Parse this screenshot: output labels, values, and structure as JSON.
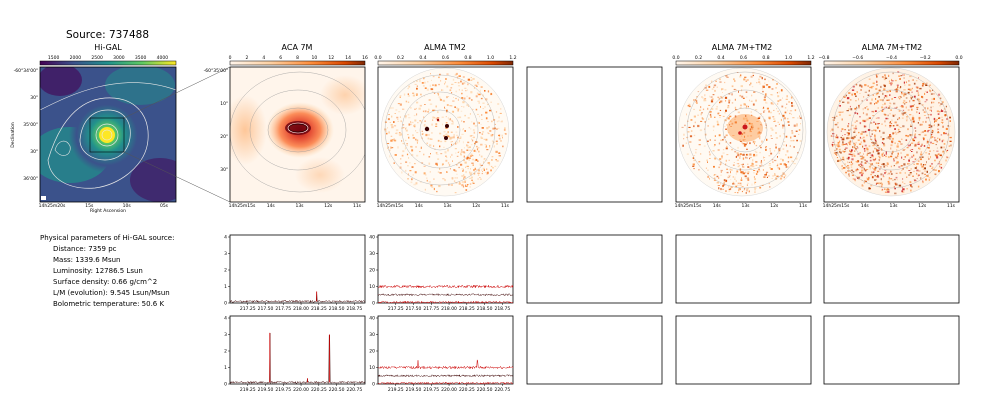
{
  "source_title": "Source: 737488",
  "colors": {
    "higal_cmap": [
      "#440154",
      "#3b528b",
      "#21918c",
      "#5ec962",
      "#fde725"
    ],
    "alma_cmap": [
      "#fff5eb",
      "#fdd0a2",
      "#fd8d3c",
      "#d94801",
      "#7f2704"
    ],
    "spec_dark": "#3b0000",
    "spec_red": "#cc0000"
  },
  "panels": [
    {
      "title": "Hi-GAL",
      "cbar_ticks": [
        "1500",
        "2000",
        "2500",
        "3000",
        "3500",
        "4000"
      ],
      "xticks": [
        "14h25m20s",
        "15s",
        "10s",
        "05s"
      ],
      "yticks": [
        "-60°34'00\"",
        "30\"",
        "35'00\"",
        "30\"",
        "36'00\""
      ],
      "xlabel": "Right Ascension",
      "ylabel": "Declination"
    },
    {
      "title": "ACA 7M",
      "cbar_ticks": [
        "0",
        "2",
        "4",
        "6",
        "8",
        "10",
        "12",
        "14",
        "16"
      ],
      "xticks": [
        "14h25m15s",
        "14s",
        "13s",
        "12s",
        "11s"
      ],
      "yticks": [
        "-60°35'00\"",
        "10\"",
        "20\"",
        "30\""
      ]
    },
    {
      "title": "ALMA TM2",
      "cbar_ticks": [
        "0.0",
        "0.2",
        "0.4",
        "0.6",
        "0.8",
        "1.0",
        "1.2"
      ],
      "xticks": [
        "14h25m15s",
        "14s",
        "13s",
        "12s",
        "11s"
      ]
    },
    {
      "title": "ALMA 7M+TM2",
      "cbar_ticks": [
        "0.0",
        "0.2",
        "0.4",
        "0.6",
        "0.8",
        "1.0",
        "1.2"
      ],
      "xticks": [
        "14h25m15s",
        "14s",
        "13s",
        "12s",
        "11s"
      ]
    },
    {
      "title": "ALMA 7M+TM2",
      "cbar_ticks": [
        "−0.8",
        "−0.6",
        "−0.4",
        "−0.2",
        "0.0"
      ],
      "xticks": [
        "14h25m15s",
        "14s",
        "13s",
        "12s",
        "11s"
      ]
    }
  ],
  "info": {
    "heading": "Physical parameters of Hi-GAL source:",
    "lines": [
      "Distance: 7359 pc",
      "Mass: 1339.6 Msun",
      "Luminosity: 12786.5 Lsun",
      "Surface density: 0.66 g/cm^2",
      "L/M (evolution): 9.545 Lsun/Msun",
      "Bolometric temperature: 50.6 K"
    ]
  },
  "chart_data": [
    {
      "type": "line",
      "xlim": [
        217.0,
        218.9
      ],
      "ylim": [
        0,
        4
      ],
      "xticks": [
        "217.25",
        "217.50",
        "217.75",
        "218.00",
        "218.25",
        "218.50",
        "218.75"
      ],
      "yticks": [
        "0",
        "1",
        "2",
        "3",
        "4"
      ],
      "series": [
        {
          "baseline": 0.1,
          "noise": 0.06,
          "peaks": [
            [
              218.22,
              0.6
            ]
          ]
        }
      ]
    },
    {
      "type": "line",
      "xlim": [
        217.0,
        218.9
      ],
      "ylim": [
        0,
        40
      ],
      "xticks": [
        "217.25",
        "217.50",
        "217.75",
        "218.00",
        "218.25",
        "218.50",
        "218.75"
      ],
      "yticks": [
        "0",
        "10",
        "20",
        "30",
        "40"
      ],
      "series": [
        {
          "baseline": 10,
          "noise": 0.8,
          "peaks": []
        },
        {
          "baseline": 5,
          "noise": 0.6,
          "peaks": []
        },
        {
          "baseline": 0.5,
          "noise": 0.6,
          "peaks": []
        }
      ]
    },
    {
      "type": "line",
      "xlim": [
        219.0,
        220.9
      ],
      "ylim": [
        0,
        4
      ],
      "xticks": [
        "219.25",
        "219.50",
        "219.75",
        "220.00",
        "220.25",
        "220.50",
        "220.75"
      ],
      "yticks": [
        "0",
        "1",
        "2",
        "3",
        "4"
      ],
      "series": [
        {
          "baseline": 0.1,
          "noise": 0.06,
          "peaks": [
            [
              219.56,
              3.0
            ],
            [
              220.4,
              2.9
            ],
            [
              220.09,
              0.25
            ]
          ]
        }
      ]
    },
    {
      "type": "line",
      "xlim": [
        219.0,
        220.9
      ],
      "ylim": [
        0,
        40
      ],
      "xticks": [
        "219.25",
        "219.50",
        "219.75",
        "220.00",
        "220.25",
        "220.50",
        "220.75"
      ],
      "yticks": [
        "0",
        "10",
        "20",
        "30",
        "40"
      ],
      "series": [
        {
          "baseline": 10,
          "noise": 0.8,
          "peaks": [
            [
              219.56,
              5
            ],
            [
              220.4,
              4
            ]
          ]
        },
        {
          "baseline": 5,
          "noise": 0.6,
          "peaks": []
        },
        {
          "baseline": 0.5,
          "noise": 0.6,
          "peaks": []
        }
      ]
    }
  ]
}
